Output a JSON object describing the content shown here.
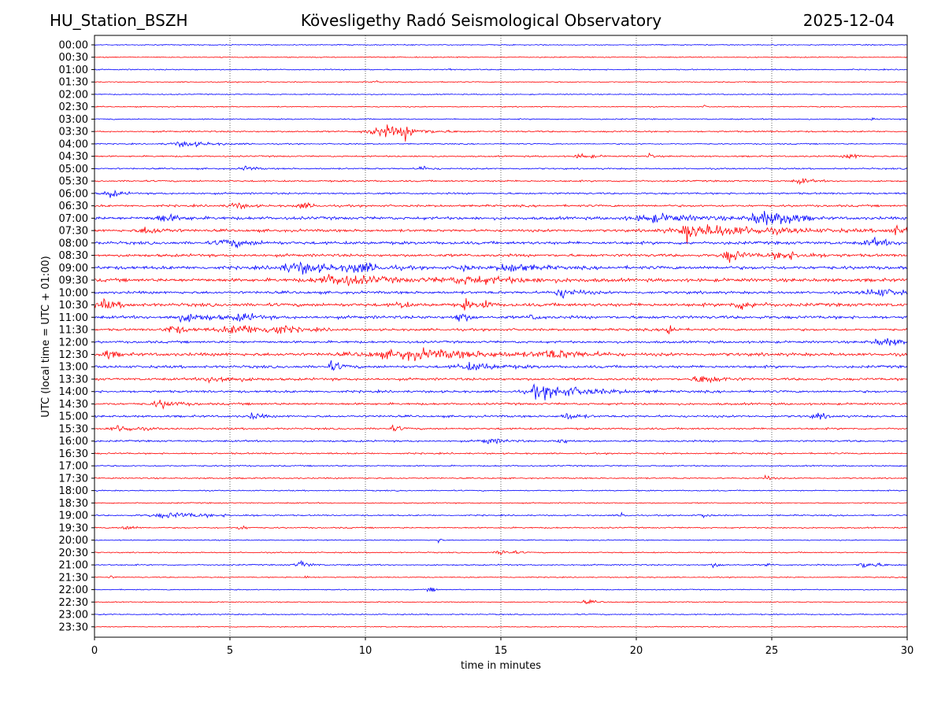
{
  "header": {
    "station": "HU_Station_BSZH",
    "observatory": "Kövesligethy Radó Seismological Observatory",
    "date": "2025-12-04"
  },
  "chart_data": {
    "type": "line",
    "title": "Kövesligethy Radó Seismological Observatory",
    "xlabel": "time in minutes",
    "ylabel": "UTC (local time = UTC + 01:00)",
    "xlim": [
      0,
      30
    ],
    "x_ticks": [
      "0",
      "5",
      "10",
      "15",
      "20",
      "25",
      "30"
    ],
    "x_tick_values": [
      0,
      5,
      10,
      15,
      20,
      25,
      30
    ],
    "grid": "vertical dotted at x ticks",
    "series_colors": [
      "#0000ff",
      "#ff0000"
    ],
    "rows": [
      {
        "label": "00:00",
        "noise": 0.6,
        "events": []
      },
      {
        "label": "00:30",
        "noise": 0.6,
        "events": []
      },
      {
        "label": "01:00",
        "noise": 0.7,
        "events": [
          {
            "t": 13.1,
            "amp": 2,
            "dur": 0.1
          }
        ]
      },
      {
        "label": "01:30",
        "noise": 0.6,
        "events": [
          {
            "t": 10.4,
            "amp": 2,
            "dur": 0.1
          }
        ]
      },
      {
        "label": "02:00",
        "noise": 0.6,
        "events": []
      },
      {
        "label": "02:30",
        "noise": 0.6,
        "events": [
          {
            "t": 22.5,
            "amp": 2,
            "dur": 0.1
          }
        ]
      },
      {
        "label": "03:00",
        "noise": 0.7,
        "events": [
          {
            "t": 28.7,
            "amp": 2,
            "dur": 0.1
          }
        ]
      },
      {
        "label": "03:30",
        "noise": 0.9,
        "events": [
          {
            "t": 10.8,
            "amp": 6,
            "dur": 1.2
          },
          {
            "t": 11.5,
            "amp": 5,
            "dur": 0.3
          }
        ]
      },
      {
        "label": "04:00",
        "noise": 0.7,
        "events": [
          {
            "t": 3.4,
            "amp": 3,
            "dur": 1.0
          }
        ]
      },
      {
        "label": "04:30",
        "noise": 0.9,
        "events": [
          {
            "t": 18.0,
            "amp": 3,
            "dur": 0.4
          },
          {
            "t": 20.5,
            "amp": 4,
            "dur": 0.1
          },
          {
            "t": 27.9,
            "amp": 3,
            "dur": 0.4
          }
        ]
      },
      {
        "label": "05:00",
        "noise": 0.9,
        "events": [
          {
            "t": 5.6,
            "amp": 3,
            "dur": 0.3
          },
          {
            "t": 12.1,
            "amp": 3,
            "dur": 0.3
          }
        ]
      },
      {
        "label": "05:30",
        "noise": 1.0,
        "events": [
          {
            "t": 26.1,
            "amp": 3,
            "dur": 0.4
          }
        ]
      },
      {
        "label": "06:00",
        "noise": 1.1,
        "events": [
          {
            "t": 0.6,
            "amp": 4,
            "dur": 0.4
          }
        ]
      },
      {
        "label": "06:30",
        "noise": 1.3,
        "events": [
          {
            "t": 5.2,
            "amp": 4,
            "dur": 0.4
          },
          {
            "t": 7.7,
            "amp": 3,
            "dur": 0.4
          }
        ]
      },
      {
        "label": "07:00",
        "noise": 1.8,
        "events": [
          {
            "t": 2.6,
            "amp": 4,
            "dur": 0.6
          },
          {
            "t": 20.8,
            "amp": 4,
            "dur": 1.5
          },
          {
            "t": 24.7,
            "amp": 8,
            "dur": 0.8
          },
          {
            "t": 25.5,
            "amp": 5,
            "dur": 0.5
          }
        ]
      },
      {
        "label": "07:30",
        "noise": 1.6,
        "events": [
          {
            "t": 2.0,
            "amp": 4,
            "dur": 0.6
          },
          {
            "t": 21.9,
            "amp": 10,
            "dur": 0.2
          },
          {
            "t": 23.0,
            "amp": 6,
            "dur": 2.5
          },
          {
            "t": 29.6,
            "amp": 5,
            "dur": 0.5
          }
        ]
      },
      {
        "label": "08:00",
        "noise": 1.8,
        "events": [
          {
            "t": 5.0,
            "amp": 4,
            "dur": 0.8
          },
          {
            "t": 28.8,
            "amp": 4,
            "dur": 0.6
          }
        ]
      },
      {
        "label": "08:30",
        "noise": 1.7,
        "events": [
          {
            "t": 23.5,
            "amp": 7,
            "dur": 0.5
          },
          {
            "t": 25.5,
            "amp": 4,
            "dur": 1.0
          }
        ]
      },
      {
        "label": "09:00",
        "noise": 2.0,
        "events": [
          {
            "t": 7.6,
            "amp": 6,
            "dur": 1.2
          },
          {
            "t": 9.8,
            "amp": 5,
            "dur": 0.8
          },
          {
            "t": 13.6,
            "amp": 5,
            "dur": 0.2
          },
          {
            "t": 15.4,
            "amp": 5,
            "dur": 0.8
          }
        ]
      },
      {
        "label": "09:30",
        "noise": 2.0,
        "events": [
          {
            "t": 9.1,
            "amp": 6,
            "dur": 1.5
          },
          {
            "t": 14.0,
            "amp": 4,
            "dur": 2.0
          }
        ]
      },
      {
        "label": "10:00",
        "noise": 1.6,
        "events": [
          {
            "t": 17.3,
            "amp": 5,
            "dur": 0.6
          },
          {
            "t": 29.0,
            "amp": 4,
            "dur": 1.0
          }
        ]
      },
      {
        "label": "10:30",
        "noise": 2.0,
        "events": [
          {
            "t": 0.4,
            "amp": 5,
            "dur": 0.5
          },
          {
            "t": 11.3,
            "amp": 6,
            "dur": 0.2
          },
          {
            "t": 13.7,
            "amp": 6,
            "dur": 0.2
          },
          {
            "t": 14.4,
            "amp": 7,
            "dur": 0.2
          },
          {
            "t": 23.9,
            "amp": 4,
            "dur": 0.6
          }
        ]
      },
      {
        "label": "11:00",
        "noise": 1.8,
        "events": [
          {
            "t": 3.5,
            "amp": 4,
            "dur": 1.0
          },
          {
            "t": 5.5,
            "amp": 4,
            "dur": 0.5
          },
          {
            "t": 13.5,
            "amp": 6,
            "dur": 0.3
          },
          {
            "t": 16.2,
            "amp": 5,
            "dur": 0.2
          }
        ]
      },
      {
        "label": "11:30",
        "noise": 1.4,
        "events": [
          {
            "t": 2.9,
            "amp": 5,
            "dur": 0.5
          },
          {
            "t": 5.5,
            "amp": 5,
            "dur": 1.5
          },
          {
            "t": 6.7,
            "amp": 5,
            "dur": 0.4
          },
          {
            "t": 21.2,
            "amp": 9,
            "dur": 0.2
          }
        ]
      },
      {
        "label": "12:00",
        "noise": 1.4,
        "events": [
          {
            "t": 29.2,
            "amp": 4,
            "dur": 0.8
          }
        ]
      },
      {
        "label": "12:30",
        "noise": 1.9,
        "events": [
          {
            "t": 0.5,
            "amp": 5,
            "dur": 0.3
          },
          {
            "t": 12.0,
            "amp": 5,
            "dur": 3.0
          },
          {
            "t": 17.0,
            "amp": 4,
            "dur": 1.0
          }
        ]
      },
      {
        "label": "13:00",
        "noise": 1.6,
        "events": [
          {
            "t": 8.8,
            "amp": 5,
            "dur": 0.4
          },
          {
            "t": 14.0,
            "amp": 4,
            "dur": 1.0
          }
        ]
      },
      {
        "label": "13:30",
        "noise": 1.5,
        "events": [
          {
            "t": 4.5,
            "amp": 4,
            "dur": 0.8
          },
          {
            "t": 22.5,
            "amp": 5,
            "dur": 0.6
          }
        ]
      },
      {
        "label": "14:00",
        "noise": 1.4,
        "events": [
          {
            "t": 16.3,
            "amp": 5,
            "dur": 0.3
          },
          {
            "t": 17.1,
            "amp": 6,
            "dur": 1.5
          }
        ]
      },
      {
        "label": "14:30",
        "noise": 1.3,
        "events": [
          {
            "t": 2.5,
            "amp": 4,
            "dur": 0.6
          }
        ]
      },
      {
        "label": "15:00",
        "noise": 1.3,
        "events": [
          {
            "t": 5.9,
            "amp": 4,
            "dur": 0.3
          },
          {
            "t": 17.5,
            "amp": 4,
            "dur": 0.4
          },
          {
            "t": 26.7,
            "amp": 4,
            "dur": 0.3
          }
        ]
      },
      {
        "label": "15:30",
        "noise": 1.1,
        "events": [
          {
            "t": 1.0,
            "amp": 4,
            "dur": 0.6
          },
          {
            "t": 11.1,
            "amp": 3,
            "dur": 0.3
          }
        ]
      },
      {
        "label": "16:00",
        "noise": 1.1,
        "events": [
          {
            "t": 14.6,
            "amp": 3,
            "dur": 0.6
          },
          {
            "t": 17.2,
            "amp": 3,
            "dur": 0.3
          }
        ]
      },
      {
        "label": "16:30",
        "noise": 0.9,
        "events": []
      },
      {
        "label": "17:00",
        "noise": 0.8,
        "events": []
      },
      {
        "label": "17:30",
        "noise": 0.8,
        "events": [
          {
            "t": 24.8,
            "amp": 3,
            "dur": 0.2
          }
        ]
      },
      {
        "label": "18:00",
        "noise": 0.7,
        "events": []
      },
      {
        "label": "18:30",
        "noise": 0.7,
        "events": []
      },
      {
        "label": "19:00",
        "noise": 0.8,
        "events": [
          {
            "t": 3.0,
            "amp": 3,
            "dur": 1.5
          },
          {
            "t": 19.5,
            "amp": 3,
            "dur": 0.2
          },
          {
            "t": 22.5,
            "amp": 3,
            "dur": 0.2
          }
        ]
      },
      {
        "label": "19:30",
        "noise": 0.8,
        "events": [
          {
            "t": 1.2,
            "amp": 3,
            "dur": 0.3
          },
          {
            "t": 5.4,
            "amp": 3,
            "dur": 0.2
          }
        ]
      },
      {
        "label": "20:00",
        "noise": 0.6,
        "events": [
          {
            "t": 12.7,
            "amp": 3,
            "dur": 0.1
          }
        ]
      },
      {
        "label": "20:30",
        "noise": 0.7,
        "events": [
          {
            "t": 15.1,
            "amp": 4,
            "dur": 0.4
          }
        ]
      },
      {
        "label": "21:00",
        "noise": 0.8,
        "events": [
          {
            "t": 7.6,
            "amp": 5,
            "dur": 0.3
          },
          {
            "t": 22.9,
            "amp": 3,
            "dur": 0.2
          },
          {
            "t": 24.8,
            "amp": 3,
            "dur": 0.1
          },
          {
            "t": 28.5,
            "amp": 4,
            "dur": 0.5
          }
        ]
      },
      {
        "label": "21:30",
        "noise": 0.6,
        "events": [
          {
            "t": 0.6,
            "amp": 2,
            "dur": 0.1
          },
          {
            "t": 7.8,
            "amp": 2,
            "dur": 0.1
          }
        ]
      },
      {
        "label": "22:00",
        "noise": 0.6,
        "events": [
          {
            "t": 12.4,
            "amp": 3,
            "dur": 0.2
          }
        ]
      },
      {
        "label": "22:30",
        "noise": 0.6,
        "events": [
          {
            "t": 18.2,
            "amp": 2,
            "dur": 0.4
          }
        ]
      },
      {
        "label": "23:00",
        "noise": 0.7,
        "events": []
      },
      {
        "label": "23:30",
        "noise": 0.6,
        "events": []
      }
    ]
  }
}
